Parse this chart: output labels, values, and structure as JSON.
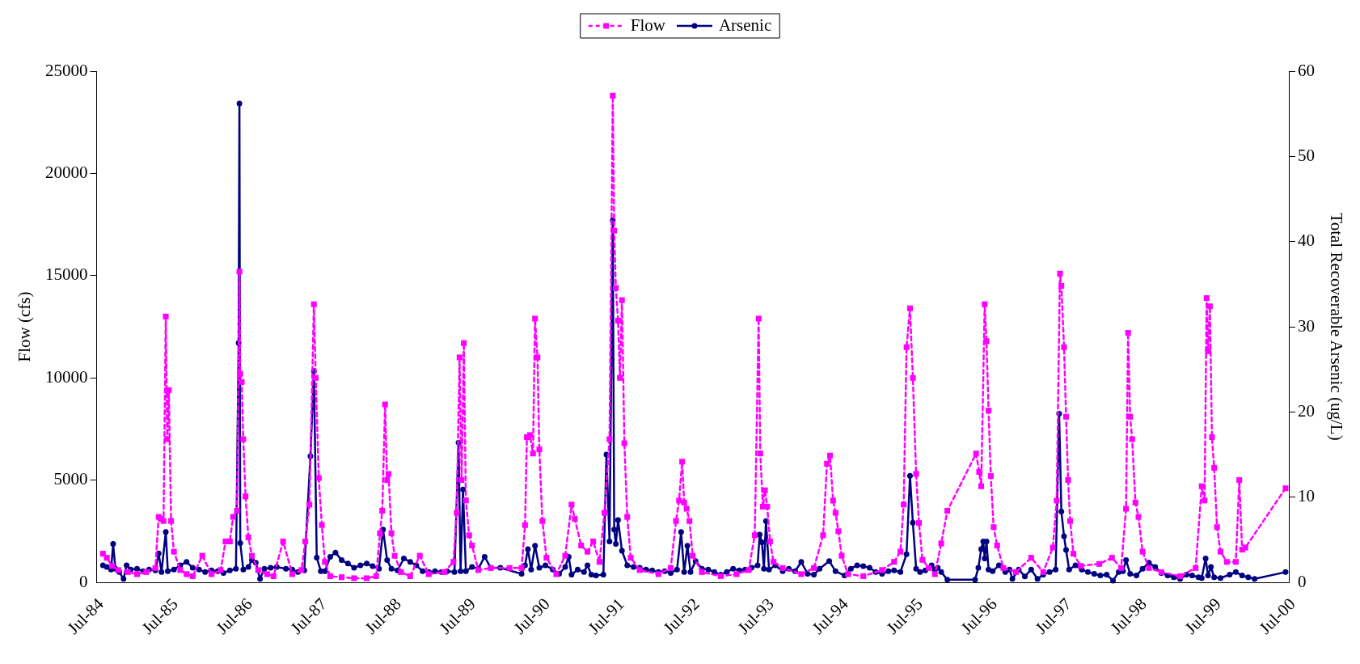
{
  "chart_data": {
    "type": "line",
    "xlim": [
      "1984-07",
      "2000-07"
    ],
    "xticks": [
      {
        "value": "1984-07",
        "label": "Jul-84"
      },
      {
        "value": "1985-07",
        "label": "Jul-85"
      },
      {
        "value": "1986-07",
        "label": "Jul-86"
      },
      {
        "value": "1987-07",
        "label": "Jul-87"
      },
      {
        "value": "1988-07",
        "label": "Jul-88"
      },
      {
        "value": "1989-07",
        "label": "Jul-89"
      },
      {
        "value": "1990-07",
        "label": "Jul-90"
      },
      {
        "value": "1991-07",
        "label": "Jul-91"
      },
      {
        "value": "1992-07",
        "label": "Jul-92"
      },
      {
        "value": "1993-07",
        "label": "Jul-93"
      },
      {
        "value": "1994-07",
        "label": "Jul-94"
      },
      {
        "value": "1995-07",
        "label": "Jul-95"
      },
      {
        "value": "1996-07",
        "label": "Jul-96"
      },
      {
        "value": "1997-07",
        "label": "Jul-97"
      },
      {
        "value": "1998-07",
        "label": "Jul-98"
      },
      {
        "value": "1999-07",
        "label": "Jul-99"
      },
      {
        "value": "2000-07",
        "label": "Jul-00"
      }
    ],
    "ylabel": "Flow (cfs)",
    "y2label": "Total Recoverable Arsenic (ug/L)",
    "ylim": [
      0,
      25000
    ],
    "yticks": [
      0,
      5000,
      10000,
      15000,
      20000,
      25000
    ],
    "y2lim": [
      0,
      60
    ],
    "y2ticks": [
      0,
      10,
      20,
      30,
      40,
      50,
      60
    ],
    "legend": "top",
    "grid": false,
    "series": [
      {
        "name": "Flow",
        "color": "#ff00ff",
        "marker": "square",
        "line_style": "dashed",
        "x": [
          "1984-08-01",
          "1984-08-20",
          "1984-09-15",
          "1984-10-15",
          "1984-12-01",
          "1985-01-15",
          "1985-03-01",
          "1985-04-15",
          "1985-05-01",
          "1985-05-15",
          "1985-05-25",
          "1985-06-05",
          "1985-06-12",
          "1985-06-20",
          "1985-07-01",
          "1985-07-15",
          "1985-08-15",
          "1985-09-15",
          "1985-10-15",
          "1985-12-01",
          "1986-01-15",
          "1986-03-01",
          "1986-03-25",
          "1986-04-15",
          "1986-05-01",
          "1986-05-20",
          "1986-06-01",
          "1986-06-05",
          "1986-06-12",
          "1986-06-20",
          "1986-07-01",
          "1986-07-15",
          "1986-08-01",
          "1986-09-01",
          "1986-10-15",
          "1986-11-15",
          "1987-01-01",
          "1987-02-15",
          "1987-04-01",
          "1987-04-20",
          "1987-05-10",
          "1987-06-01",
          "1987-06-10",
          "1987-06-25",
          "1987-07-10",
          "1987-07-25",
          "1987-08-20",
          "1987-10-15",
          "1987-12-15",
          "1988-02-15",
          "1988-04-01",
          "1988-04-20",
          "1988-05-01",
          "1988-05-15",
          "1988-05-25",
          "1988-06-01",
          "1988-06-15",
          "1988-07-01",
          "1988-08-01",
          "1988-09-15",
          "1988-11-01",
          "1988-12-15",
          "1989-03-01",
          "1989-04-15",
          "1989-05-01",
          "1989-05-15",
          "1989-05-25",
          "1989-06-05",
          "1989-06-15",
          "1989-07-01",
          "1989-07-15",
          "1989-08-15",
          "1989-10-15",
          "1990-01-15",
          "1990-03-15",
          "1990-04-01",
          "1990-04-10",
          "1990-04-25",
          "1990-05-10",
          "1990-05-20",
          "1990-06-01",
          "1990-06-10",
          "1990-06-25",
          "1990-07-15",
          "1990-09-01",
          "1990-10-15",
          "1990-11-15",
          "1990-12-01",
          "1991-01-01",
          "1991-02-01",
          "1991-03-01",
          "1991-04-01",
          "1991-04-25",
          "1991-05-20",
          "1991-06-05",
          "1991-06-12",
          "1991-06-20",
          "1991-07-01",
          "1991-07-10",
          "1991-07-20",
          "1991-08-01",
          "1991-08-15",
          "1991-09-01",
          "1991-10-15",
          "1992-01-15",
          "1992-03-15",
          "1992-04-10",
          "1992-04-25",
          "1992-05-10",
          "1992-05-20",
          "1992-06-01",
          "1992-06-15",
          "1992-07-01",
          "1992-08-15",
          "1992-11-15",
          "1993-02-01",
          "1993-04-01",
          "1993-05-01",
          "1993-05-20",
          "1993-05-28",
          "1993-06-10",
          "1993-06-20",
          "1993-07-01",
          "1993-07-15",
          "1993-08-01",
          "1993-09-15",
          "1993-12-15",
          "1994-02-15",
          "1994-04-01",
          "1994-04-20",
          "1994-05-05",
          "1994-05-20",
          "1994-06-01",
          "1994-06-15",
          "1994-07-01",
          "1994-08-01",
          "1994-10-15",
          "1995-01-15",
          "1995-03-15",
          "1995-04-15",
          "1995-05-01",
          "1995-05-15",
          "1995-06-01",
          "1995-06-15",
          "1995-07-01",
          "1995-07-15",
          "1995-08-01",
          "1995-09-01",
          "1995-10-01",
          "1995-11-01",
          "1995-12-01",
          "1996-04-20",
          "1996-05-05",
          "1996-05-15",
          "1996-06-01",
          "1996-06-10",
          "1996-06-20",
          "1996-07-01",
          "1996-07-15",
          "1996-08-01",
          "1996-09-01",
          "1996-11-01",
          "1997-01-15",
          "1997-03-15",
          "1997-05-01",
          "1997-05-20",
          "1997-06-05",
          "1997-06-12",
          "1997-06-25",
          "1997-07-05",
          "1997-07-15",
          "1997-07-25",
          "1997-08-10",
          "1997-09-15",
          "1997-12-15",
          "1998-02-15",
          "1998-04-01",
          "1998-04-25",
          "1998-05-05",
          "1998-05-15",
          "1998-05-25",
          "1998-06-10",
          "1998-06-25",
          "1998-07-15",
          "1998-08-15",
          "1998-10-15",
          "1999-01-15",
          "1999-04-01",
          "1999-05-01",
          "1999-05-15",
          "1999-05-25",
          "1999-06-01",
          "1999-06-10",
          "1999-06-20",
          "1999-07-01",
          "1999-07-15",
          "1999-08-01",
          "1999-09-01",
          "1999-10-15",
          "1999-11-01",
          "1999-11-15",
          "1999-12-01",
          "2000-06-15"
        ],
        "values": [
          1400,
          1200,
          800,
          600,
          500,
          400,
          500,
          700,
          3200,
          3100,
          3000,
          13000,
          7000,
          9400,
          3000,
          1500,
          600,
          400,
          300,
          1300,
          400,
          600,
          2000,
          2000,
          3200,
          3500,
          15200,
          10200,
          9800,
          7000,
          4200,
          2200,
          1300,
          600,
          400,
          300,
          2000,
          400,
          600,
          2000,
          3800,
          13600,
          10000,
          5100,
          2800,
          1000,
          300,
          250,
          200,
          200,
          300,
          2400,
          3500,
          8700,
          5000,
          5300,
          2400,
          1300,
          500,
          300,
          1300,
          400,
          500,
          1000,
          3400,
          11000,
          5000,
          11700,
          4000,
          2300,
          1800,
          600,
          700,
          700,
          700,
          2800,
          7100,
          7200,
          6300,
          12900,
          11000,
          6500,
          3000,
          1200,
          400,
          1300,
          3800,
          3100,
          1800,
          1500,
          2000,
          1000,
          3400,
          7000,
          23800,
          17200,
          14400,
          12800,
          10000,
          13800,
          6800,
          3200,
          1200,
          600,
          400,
          700,
          3000,
          4000,
          5900,
          3900,
          3600,
          3000,
          1300,
          500,
          300,
          400,
          600,
          2300,
          12900,
          6300,
          3700,
          4500,
          3700,
          2000,
          1000,
          700,
          400,
          700,
          2300,
          5800,
          6200,
          4000,
          3400,
          2500,
          1300,
          400,
          300,
          600,
          1000,
          1500,
          3800,
          11500,
          13400,
          10000,
          5300,
          2900,
          1100,
          700,
          400,
          1900,
          3500,
          6300,
          5400,
          4700,
          13600,
          11800,
          8400,
          5200,
          2700,
          1800,
          700,
          500,
          1200,
          500,
          1700,
          4000,
          15100,
          14500,
          11500,
          8100,
          5000,
          3000,
          1400,
          800,
          900,
          1200,
          700,
          3600,
          12200,
          8100,
          7000,
          3900,
          3200,
          1500,
          700,
          500,
          300,
          700,
          4700,
          4000,
          13900,
          11300,
          13500,
          7100,
          5600,
          2700,
          1500,
          1000,
          1000,
          5000,
          1600,
          1700,
          4600
        ]
      },
      {
        "name": "Arsenic",
        "color": "#000080",
        "marker": "circle",
        "line_style": "solid",
        "axis": "y2",
        "x": [
          "1984-08-01",
          "1984-08-20",
          "1984-09-10",
          "1984-09-20",
          "1984-10-01",
          "1984-10-20",
          "1984-11-10",
          "1984-11-25",
          "1984-12-15",
          "1985-01-15",
          "1985-02-15",
          "1985-03-15",
          "1985-04-15",
          "1985-05-01",
          "1985-05-15",
          "1985-06-05",
          "1985-06-15",
          "1985-07-15",
          "1985-08-15",
          "1985-09-15",
          "1985-10-15",
          "1985-11-15",
          "1985-12-15",
          "1986-01-15",
          "1986-02-15",
          "1986-03-15",
          "1986-04-15",
          "1986-05-15",
          "1986-05-28",
          "1986-06-01",
          "1986-06-05",
          "1986-06-20",
          "1986-07-15",
          "1986-08-01",
          "1986-08-20",
          "1986-09-10",
          "1986-10-01",
          "1986-11-01",
          "1986-12-01",
          "1987-01-15",
          "1987-02-15",
          "1987-03-15",
          "1987-04-15",
          "1987-05-15",
          "1987-06-01",
          "1987-06-15",
          "1987-07-05",
          "1987-07-25",
          "1987-08-20",
          "1987-09-15",
          "1987-10-15",
          "1987-11-15",
          "1987-12-15",
          "1988-01-15",
          "1988-02-15",
          "1988-03-15",
          "1988-04-15",
          "1988-05-05",
          "1988-05-25",
          "1988-06-15",
          "1988-07-15",
          "1988-08-15",
          "1988-09-15",
          "1988-10-15",
          "1988-11-15",
          "1988-12-15",
          "1989-01-15",
          "1989-02-15",
          "1989-03-15",
          "1989-04-20",
          "1989-05-10",
          "1989-05-20",
          "1989-06-01",
          "1989-06-15",
          "1989-07-15",
          "1989-08-15",
          "1989-09-15",
          "1989-10-15",
          "1989-12-01",
          "1990-03-15",
          "1990-04-01",
          "1990-04-15",
          "1990-05-01",
          "1990-05-20",
          "1990-06-10",
          "1990-07-10",
          "1990-08-15",
          "1990-09-15",
          "1990-10-15",
          "1990-11-01",
          "1990-11-15",
          "1990-12-15",
          "1991-01-15",
          "1991-02-01",
          "1991-02-20",
          "1991-03-15",
          "1991-04-20",
          "1991-05-05",
          "1991-05-20",
          "1991-06-05",
          "1991-06-12",
          "1991-06-20",
          "1991-07-01",
          "1991-07-20",
          "1991-08-15",
          "1991-09-15",
          "1991-10-15",
          "1991-11-15",
          "1991-12-15",
          "1992-01-15",
          "1992-02-15",
          "1992-03-15",
          "1992-04-15",
          "1992-05-05",
          "1992-05-20",
          "1992-06-05",
          "1992-06-20",
          "1992-07-15",
          "1992-08-15",
          "1992-09-15",
          "1992-10-15",
          "1992-11-15",
          "1992-12-15",
          "1993-01-15",
          "1993-02-15",
          "1993-03-15",
          "1993-04-15",
          "1993-05-15",
          "1993-05-25",
          "1993-06-05",
          "1993-06-15",
          "1993-06-25",
          "1993-07-10",
          "1993-08-10",
          "1993-09-15",
          "1993-10-15",
          "1993-11-15",
          "1993-12-15",
          "1994-01-15",
          "1994-02-15",
          "1994-03-15",
          "1994-05-01",
          "1994-06-01",
          "1994-07-15",
          "1994-08-15",
          "1994-09-15",
          "1994-10-15",
          "1994-11-15",
          "1994-12-15",
          "1995-01-15",
          "1995-02-15",
          "1995-03-15",
          "1995-04-15",
          "1995-05-15",
          "1995-06-01",
          "1995-06-15",
          "1995-07-01",
          "1995-07-20",
          "1995-08-15",
          "1995-09-15",
          "1995-10-01",
          "1995-10-15",
          "1995-11-01",
          "1995-12-01",
          "1996-04-15",
          "1996-05-01",
          "1996-05-15",
          "1996-05-25",
          "1996-06-01",
          "1996-06-10",
          "1996-06-20",
          "1996-07-10",
          "1996-08-10",
          "1996-09-10",
          "1996-10-01",
          "1996-10-15",
          "1996-11-15",
          "1996-12-15",
          "1997-01-15",
          "1997-02-15",
          "1997-03-15",
          "1997-04-15",
          "1997-05-15",
          "1997-06-01",
          "1997-06-12",
          "1997-06-25",
          "1997-07-05",
          "1997-07-20",
          "1997-08-20",
          "1997-09-20",
          "1997-10-20",
          "1997-11-20",
          "1997-12-20",
          "1998-01-20",
          "1998-02-20",
          "1998-03-20",
          "1998-04-10",
          "1998-04-25",
          "1998-05-15",
          "1998-06-15",
          "1998-07-15",
          "1998-08-15",
          "1998-09-15",
          "1998-10-15",
          "1998-11-15",
          "1998-12-15",
          "1999-01-15",
          "1999-02-15",
          "1999-03-15",
          "1999-04-15",
          "1999-05-01",
          "1999-05-20",
          "1999-06-01",
          "1999-06-15",
          "1999-07-01",
          "1999-08-01",
          "1999-09-15",
          "1999-10-15",
          "1999-11-15",
          "1999-12-15",
          "2000-01-15",
          "2000-06-15"
        ],
        "values": [
          2.0,
          1.8,
          1.5,
          4.5,
          1.6,
          1.2,
          0.4,
          2.0,
          1.5,
          1.6,
          1.3,
          1.5,
          1.4,
          3.4,
          1.2,
          5.9,
          1.3,
          1.5,
          2.0,
          2.4,
          1.7,
          1.5,
          1.2,
          1.4,
          1.3,
          1.1,
          1.4,
          1.6,
          28.1,
          56.2,
          4.6,
          1.5,
          1.8,
          2.6,
          2.3,
          0.4,
          1.6,
          1.7,
          1.8,
          1.6,
          1.5,
          1.2,
          1.4,
          14.8,
          24.8,
          2.9,
          1.3,
          1.3,
          3.0,
          3.5,
          2.6,
          2.2,
          1.7,
          2.0,
          2.2,
          1.9,
          1.6,
          6.2,
          2.6,
          1.6,
          1.4,
          2.8,
          2.4,
          2.0,
          1.3,
          1.2,
          1.3,
          1.2,
          1.3,
          1.2,
          16.4,
          1.3,
          10.9,
          1.3,
          1.8,
          1.6,
          3.0,
          1.7,
          1.7,
          1.0,
          2.0,
          3.9,
          1.5,
          4.3,
          1.7,
          2.0,
          1.5,
          1.0,
          1.8,
          3.0,
          0.9,
          1.5,
          1.2,
          2.0,
          0.9,
          0.8,
          0.9,
          15.0,
          4.8,
          42.5,
          6.2,
          4.5,
          7.3,
          3.7,
          2.0,
          1.8,
          1.7,
          1.5,
          1.4,
          1.2,
          1.3,
          1.1,
          1.5,
          5.9,
          1.2,
          4.3,
          1.2,
          2.5,
          1.6,
          1.5,
          1.2,
          0.9,
          1.2,
          1.6,
          1.4,
          1.5,
          1.7,
          2.0,
          5.6,
          4.7,
          1.6,
          7.2,
          1.5,
          2.0,
          1.3,
          1.6,
          1.3,
          2.4,
          1.0,
          0.9,
          1.6,
          2.5,
          1.3,
          0.8,
          1.6,
          2.0,
          1.9,
          1.7,
          1.2,
          1.0,
          1.3,
          1.4,
          1.2,
          3.3,
          12.5,
          7.0,
          1.6,
          1.2,
          1.4,
          2.0,
          1.5,
          1.7,
          1.2,
          0.3,
          0.3,
          1.7,
          3.9,
          4.8,
          2.8,
          4.8,
          1.5,
          1.3,
          2.0,
          1.2,
          1.5,
          0.4,
          1.5,
          0.7,
          1.5,
          0.4,
          0.9,
          1.2,
          1.5,
          19.8,
          8.3,
          5.4,
          3.8,
          1.5,
          2.0,
          1.5,
          1.2,
          1.0,
          0.8,
          0.9,
          0.2,
          1.2,
          1.3,
          2.6,
          1.0,
          0.8,
          1.6,
          2.3,
          1.8,
          1.1,
          0.8,
          0.6,
          0.4,
          0.9,
          0.8,
          0.6,
          0.5,
          2.8,
          0.8,
          1.8,
          0.6,
          0.5,
          0.9,
          1.2,
          0.8,
          0.6,
          0.4,
          1.2
        ]
      }
    ]
  }
}
